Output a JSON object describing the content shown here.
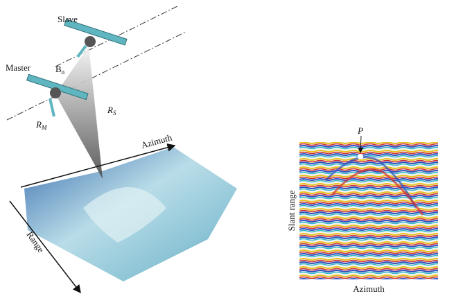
{
  "left_panel": {
    "satellites": [
      {
        "label": "Slave"
      },
      {
        "label": "Master"
      }
    ],
    "baseline": {
      "symbol": "B",
      "subscript": "n"
    },
    "ranges": [
      {
        "symbol": "R",
        "subscript": "M"
      },
      {
        "symbol": "R",
        "subscript": "S"
      }
    ],
    "azimuth_axis": "Azimuth",
    "range_axis": "Range"
  },
  "right_panel": {
    "point_label": "P",
    "y_axis": "Slant range",
    "x_axis": "Azimuth"
  }
}
